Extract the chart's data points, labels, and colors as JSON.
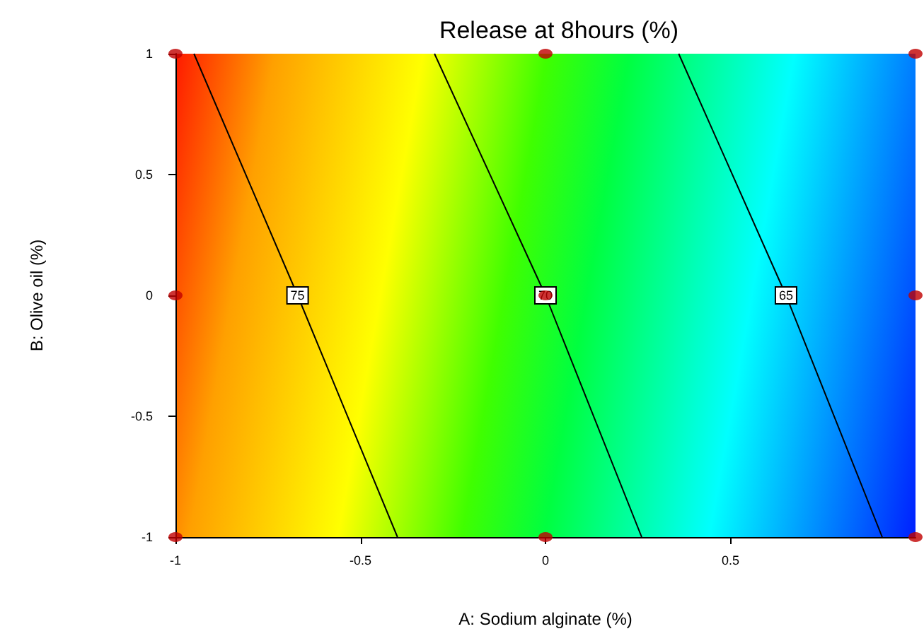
{
  "chart_data": {
    "type": "line",
    "title": "Release at 8hours (%)",
    "xlabel": "A: Sodium alginate (%)",
    "ylabel": "B: Olive oil (%)",
    "xlim": [
      -1,
      1
    ],
    "ylim": [
      -1,
      1
    ],
    "xticks": [
      -1,
      -0.5,
      0,
      0.5
    ],
    "yticks": [
      -1,
      -0.5,
      0,
      0.5,
      1
    ],
    "grid": false,
    "legend": false,
    "line_style": "solid",
    "series": [
      {
        "name": "75",
        "color": "#000000",
        "x": [
          -0.95,
          -0.67,
          -0.4
        ],
        "values": [
          1,
          0,
          -1
        ]
      },
      {
        "name": "70",
        "color": "#000000",
        "x": [
          -0.3,
          0,
          0.26
        ],
        "values": [
          1,
          0,
          -1
        ]
      },
      {
        "name": "65",
        "color": "#000000",
        "x": [
          0.36,
          0.65,
          0.91
        ],
        "values": [
          1,
          0,
          -1
        ]
      },
      {
        "type": "scatter",
        "color": "#c00000",
        "marker": "circle",
        "x": [
          -1,
          0,
          1,
          -1,
          0,
          1,
          -1,
          0,
          1
        ],
        "values": [
          1,
          1,
          1,
          0,
          0,
          0,
          -1,
          -1,
          -1
        ]
      }
    ]
  }
}
